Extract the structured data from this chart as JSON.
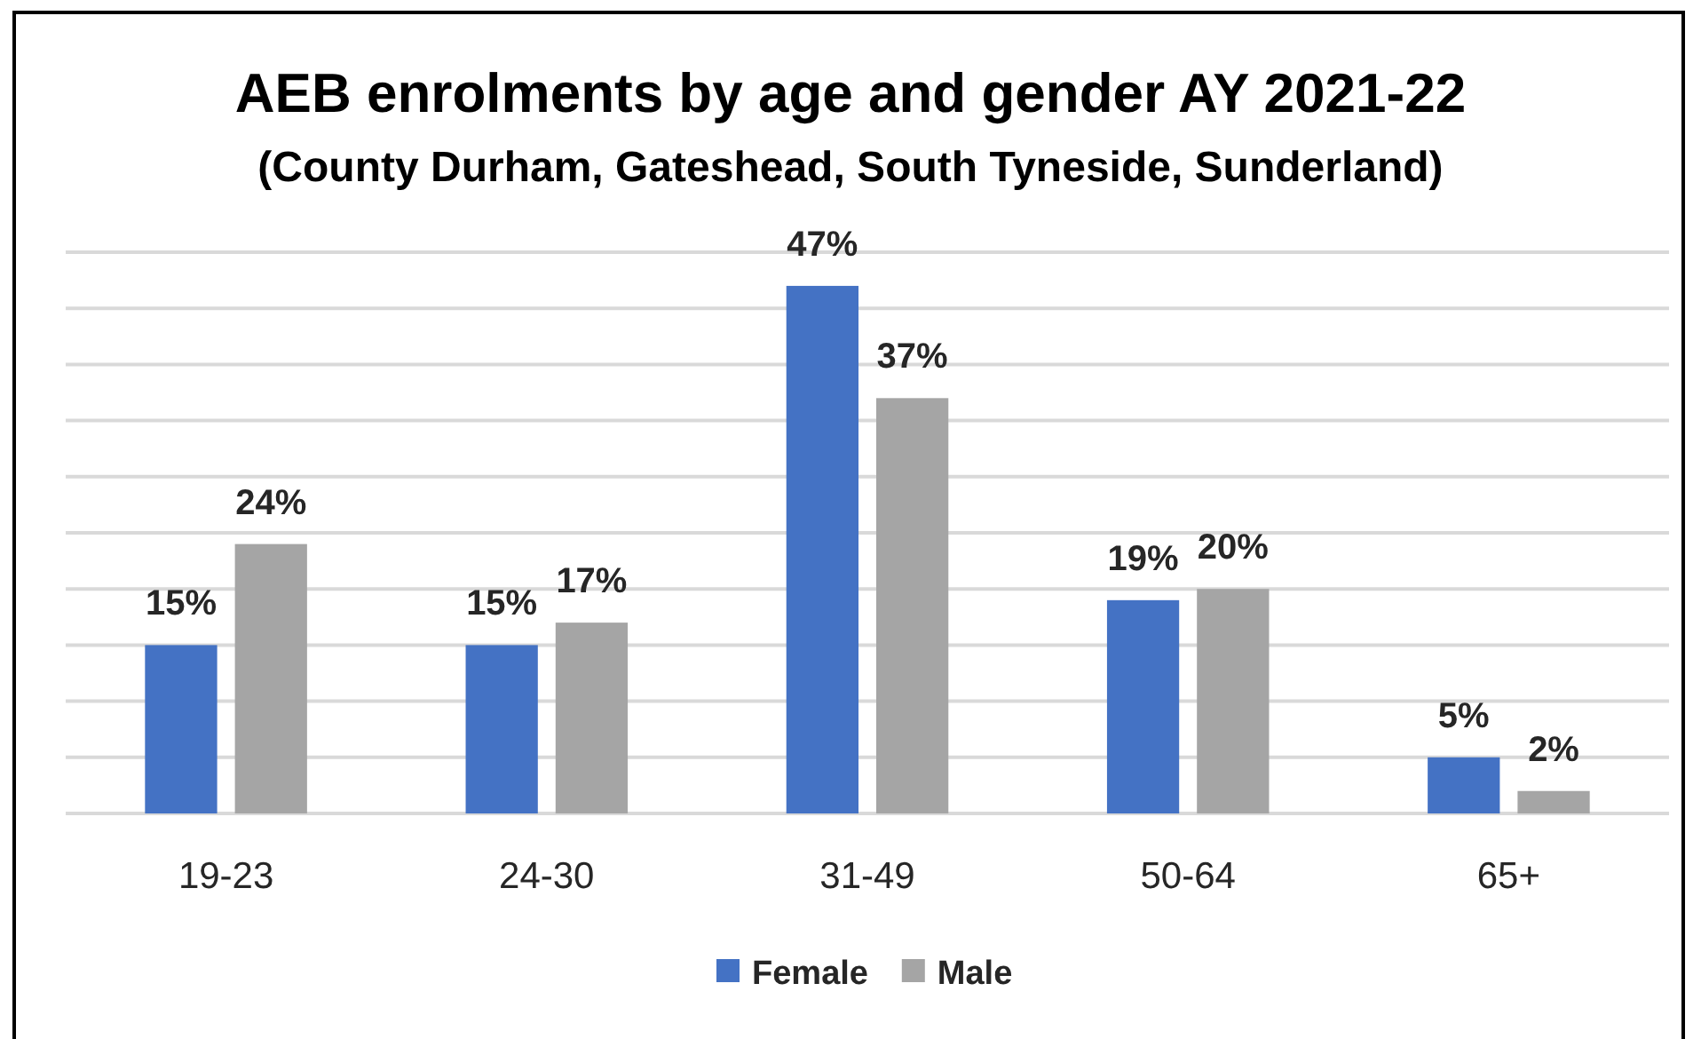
{
  "chart_data": {
    "type": "bar",
    "title": "AEB enrolments by age and gender AY 2021-22",
    "subtitle": "(County Durham, Gateshead, South Tyneside, Sunderland)",
    "categories": [
      "19-23",
      "24-30",
      "31-49",
      "50-64",
      "65+"
    ],
    "series": [
      {
        "name": "Female",
        "color": "#4472c4",
        "values": [
          15,
          15,
          47,
          19,
          5
        ],
        "value_labels": [
          "15%",
          "15%",
          "47%",
          "19%",
          "5%"
        ]
      },
      {
        "name": "Male",
        "color": "#a5a5a5",
        "values": [
          24,
          17,
          37,
          20,
          2
        ],
        "value_labels": [
          "24%",
          "17%",
          "37%",
          "20%",
          "2%"
        ]
      }
    ],
    "ylim": [
      0,
      50
    ],
    "yticks": [
      {
        "value": 0,
        "label": null
      },
      {
        "value": 5,
        "label": null
      },
      {
        "value": 10,
        "label": null
      },
      {
        "value": 15,
        "label": null
      },
      {
        "value": 20,
        "label": null
      },
      {
        "value": 25,
        "label": null
      },
      {
        "value": 30,
        "label": null
      },
      {
        "value": 35,
        "label": null
      },
      {
        "value": 40,
        "label": null
      },
      {
        "value": 45,
        "label": null
      },
      {
        "value": 50,
        "label": null
      }
    ],
    "tick_labels": "x",
    "grid": "y",
    "legend": "bottom"
  }
}
